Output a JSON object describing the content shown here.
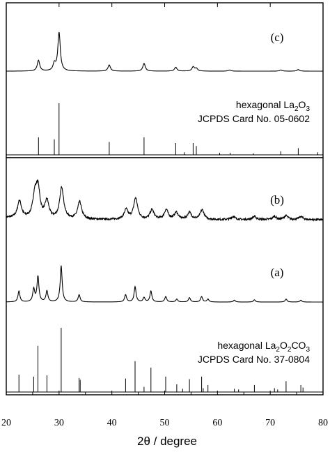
{
  "chart_data": {
    "type": "line",
    "xlabel": "2θ / degree",
    "xlim": [
      20,
      80
    ],
    "x_ticks": [
      "20",
      "30",
      "40",
      "50",
      "60",
      "70",
      "80"
    ],
    "grid": false,
    "panels": [
      {
        "label": "(c)",
        "kind": "pattern",
        "peaks": [
          {
            "x": 26.1,
            "y": 0.28
          },
          {
            "x": 29.1,
            "y": 0.18
          },
          {
            "x": 30.0,
            "y": 1.0
          },
          {
            "x": 39.5,
            "y": 0.16
          },
          {
            "x": 46.1,
            "y": 0.2
          },
          {
            "x": 52.1,
            "y": 0.1
          },
          {
            "x": 55.4,
            "y": 0.11
          },
          {
            "x": 56.0,
            "y": 0.07
          },
          {
            "x": 62.3,
            "y": 0.03
          },
          {
            "x": 72.0,
            "y": 0.03
          },
          {
            "x": 75.3,
            "y": 0.04
          }
        ]
      },
      {
        "label": "hexagonal La2O3 / JCPDS Card No. 05-0602",
        "kind": "reference",
        "line1_prefix": "hexagonal La",
        "line1_sub1": "2",
        "line1_mid": "O",
        "line1_sub2": "3",
        "line2": "JCPDS Card No. 05-0602",
        "sticks": [
          {
            "x": 26.1,
            "y": 0.34
          },
          {
            "x": 29.1,
            "y": 0.3
          },
          {
            "x": 30.0,
            "y": 1.0
          },
          {
            "x": 39.5,
            "y": 0.25
          },
          {
            "x": 46.1,
            "y": 0.34
          },
          {
            "x": 52.1,
            "y": 0.23
          },
          {
            "x": 53.7,
            "y": 0.05
          },
          {
            "x": 55.4,
            "y": 0.23
          },
          {
            "x": 56.0,
            "y": 0.17
          },
          {
            "x": 60.4,
            "y": 0.04
          },
          {
            "x": 62.4,
            "y": 0.04
          },
          {
            "x": 66.8,
            "y": 0.03
          },
          {
            "x": 72.0,
            "y": 0.07
          },
          {
            "x": 75.3,
            "y": 0.13
          },
          {
            "x": 79.0,
            "y": 0.05
          }
        ]
      },
      {
        "label": "(b)",
        "kind": "pattern",
        "noisy": true,
        "peaks": [
          {
            "x": 22.5,
            "y": 0.45
          },
          {
            "x": 25.4,
            "y": 0.55
          },
          {
            "x": 26.0,
            "y": 0.75
          },
          {
            "x": 27.7,
            "y": 0.45
          },
          {
            "x": 30.5,
            "y": 0.82
          },
          {
            "x": 33.9,
            "y": 0.45
          },
          {
            "x": 42.7,
            "y": 0.25
          },
          {
            "x": 44.5,
            "y": 0.55
          },
          {
            "x": 47.6,
            "y": 0.25
          },
          {
            "x": 50.3,
            "y": 0.25
          },
          {
            "x": 52.2,
            "y": 0.18
          },
          {
            "x": 54.7,
            "y": 0.18
          },
          {
            "x": 57.1,
            "y": 0.25
          },
          {
            "x": 63.0,
            "y": 0.08
          },
          {
            "x": 67.0,
            "y": 0.08
          },
          {
            "x": 70.8,
            "y": 0.08
          },
          {
            "x": 73.0,
            "y": 0.1
          },
          {
            "x": 75.8,
            "y": 0.08
          }
        ]
      },
      {
        "label": "(a)",
        "kind": "pattern",
        "peaks": [
          {
            "x": 22.4,
            "y": 0.3
          },
          {
            "x": 25.2,
            "y": 0.35
          },
          {
            "x": 26.0,
            "y": 0.7
          },
          {
            "x": 27.7,
            "y": 0.3
          },
          {
            "x": 30.4,
            "y": 1.0
          },
          {
            "x": 33.8,
            "y": 0.2
          },
          {
            "x": 42.6,
            "y": 0.2
          },
          {
            "x": 44.4,
            "y": 0.42
          },
          {
            "x": 46.1,
            "y": 0.12
          },
          {
            "x": 47.4,
            "y": 0.3
          },
          {
            "x": 50.2,
            "y": 0.15
          },
          {
            "x": 52.3,
            "y": 0.08
          },
          {
            "x": 54.7,
            "y": 0.12
          },
          {
            "x": 57.0,
            "y": 0.15
          },
          {
            "x": 58.2,
            "y": 0.08
          },
          {
            "x": 63.2,
            "y": 0.05
          },
          {
            "x": 67.0,
            "y": 0.06
          },
          {
            "x": 73.0,
            "y": 0.08
          },
          {
            "x": 75.8,
            "y": 0.05
          }
        ]
      },
      {
        "label": "hexagonal La2O2CO3 / JCPDS Card No. 37-0804",
        "kind": "reference",
        "line1_prefix": "hexagonal La",
        "line1_sub1": "2",
        "line1_mid": "O",
        "line1_sub2": "2",
        "line1_suffix": "CO",
        "line1_sub3": "3",
        "line2": "JCPDS Card No. 37-0804",
        "sticks": [
          {
            "x": 22.4,
            "y": 0.27
          },
          {
            "x": 25.2,
            "y": 0.24
          },
          {
            "x": 26.0,
            "y": 0.72
          },
          {
            "x": 27.7,
            "y": 0.26
          },
          {
            "x": 30.4,
            "y": 1.0
          },
          {
            "x": 33.8,
            "y": 0.22
          },
          {
            "x": 34.0,
            "y": 0.19
          },
          {
            "x": 42.6,
            "y": 0.21
          },
          {
            "x": 44.4,
            "y": 0.48
          },
          {
            "x": 46.1,
            "y": 0.08
          },
          {
            "x": 47.4,
            "y": 0.38
          },
          {
            "x": 50.2,
            "y": 0.24
          },
          {
            "x": 52.3,
            "y": 0.12
          },
          {
            "x": 53.4,
            "y": 0.05
          },
          {
            "x": 54.7,
            "y": 0.2
          },
          {
            "x": 57.0,
            "y": 0.24
          },
          {
            "x": 57.3,
            "y": 0.06
          },
          {
            "x": 58.2,
            "y": 0.11
          },
          {
            "x": 63.2,
            "y": 0.05
          },
          {
            "x": 64.0,
            "y": 0.04
          },
          {
            "x": 67.0,
            "y": 0.11
          },
          {
            "x": 70.8,
            "y": 0.06
          },
          {
            "x": 71.4,
            "y": 0.04
          },
          {
            "x": 73.0,
            "y": 0.17
          },
          {
            "x": 75.8,
            "y": 0.11
          },
          {
            "x": 76.2,
            "y": 0.07
          }
        ]
      }
    ]
  }
}
